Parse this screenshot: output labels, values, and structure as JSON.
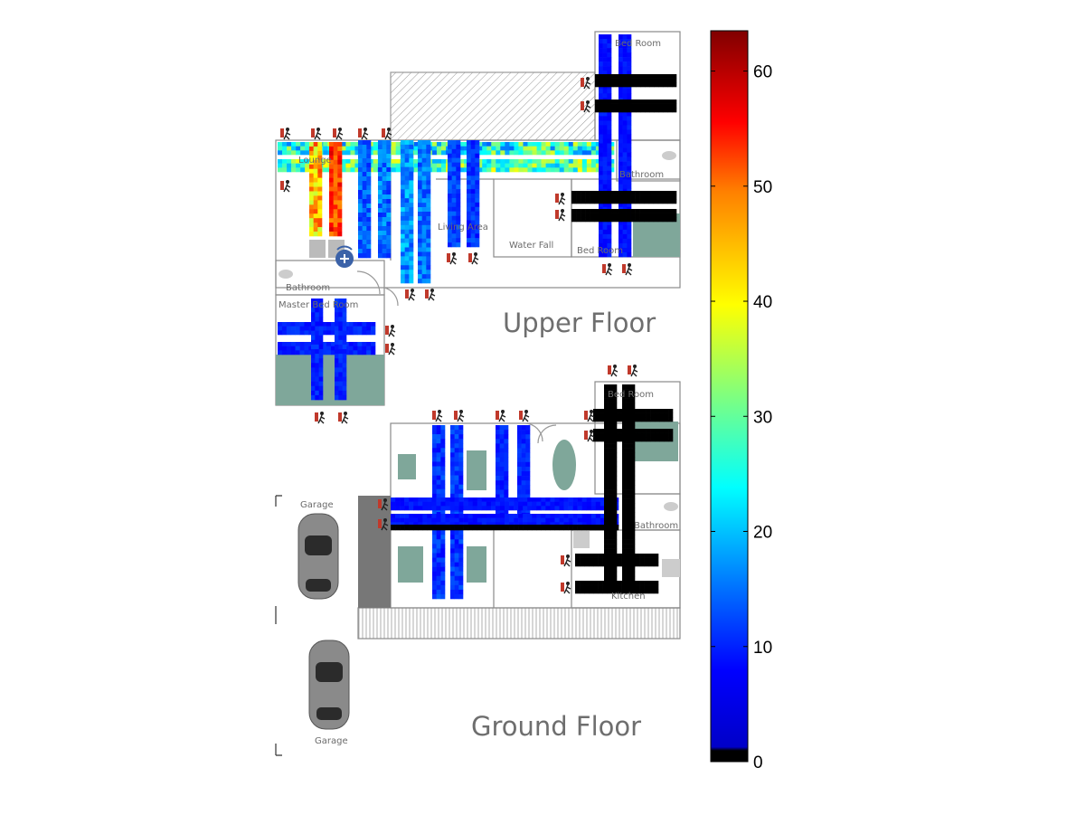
{
  "floors": {
    "upper": {
      "title": "Upper Floor",
      "rooms": {
        "bed_room_top": "Bed Room",
        "bathroom_right": "Bathroom",
        "water_fall": "Water Fall",
        "bed_room_mid": "Bed Room",
        "living_area": "Living Area",
        "lounge": "Lounge",
        "bathroom_left": "Bathroom",
        "master_bed_room": "Master Bed Room"
      }
    },
    "ground": {
      "title": "Ground Floor",
      "rooms": {
        "bed_room": "Bed Room",
        "bathroom": "Bathroom",
        "kitchen": "Kitchen",
        "garage_top": "Garage",
        "garage_bottom": "Garage"
      }
    }
  },
  "colorbar": {
    "min": 0,
    "max": 63.5,
    "ticks": [
      "0",
      "10",
      "20",
      "30",
      "40",
      "50",
      "60"
    ],
    "colormap": "jet"
  },
  "colors": {
    "wall": "#8a8a8a",
    "furniture": "#7fa79a",
    "room_label": "#6b6b6b",
    "floor_title": "#6e6e6e"
  },
  "icons": [
    "person-icon",
    "router-icon",
    "car-icon"
  ]
}
